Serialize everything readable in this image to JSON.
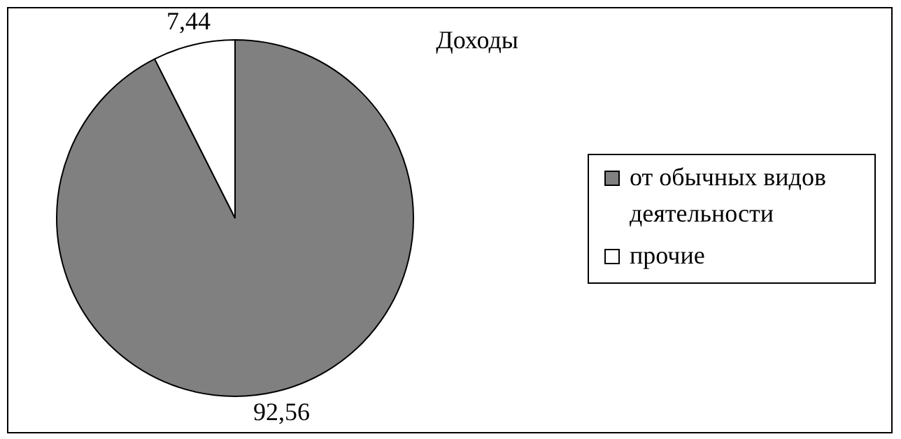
{
  "chart_data": {
    "type": "pie",
    "title": "Доходы",
    "categories": [
      "от обычных видов деятельности",
      "прочие"
    ],
    "values": [
      92.56,
      7.44
    ],
    "value_labels": [
      "92,56",
      "7,44"
    ],
    "colors": [
      "#808080",
      "#ffffff"
    ],
    "legend": "right"
  }
}
